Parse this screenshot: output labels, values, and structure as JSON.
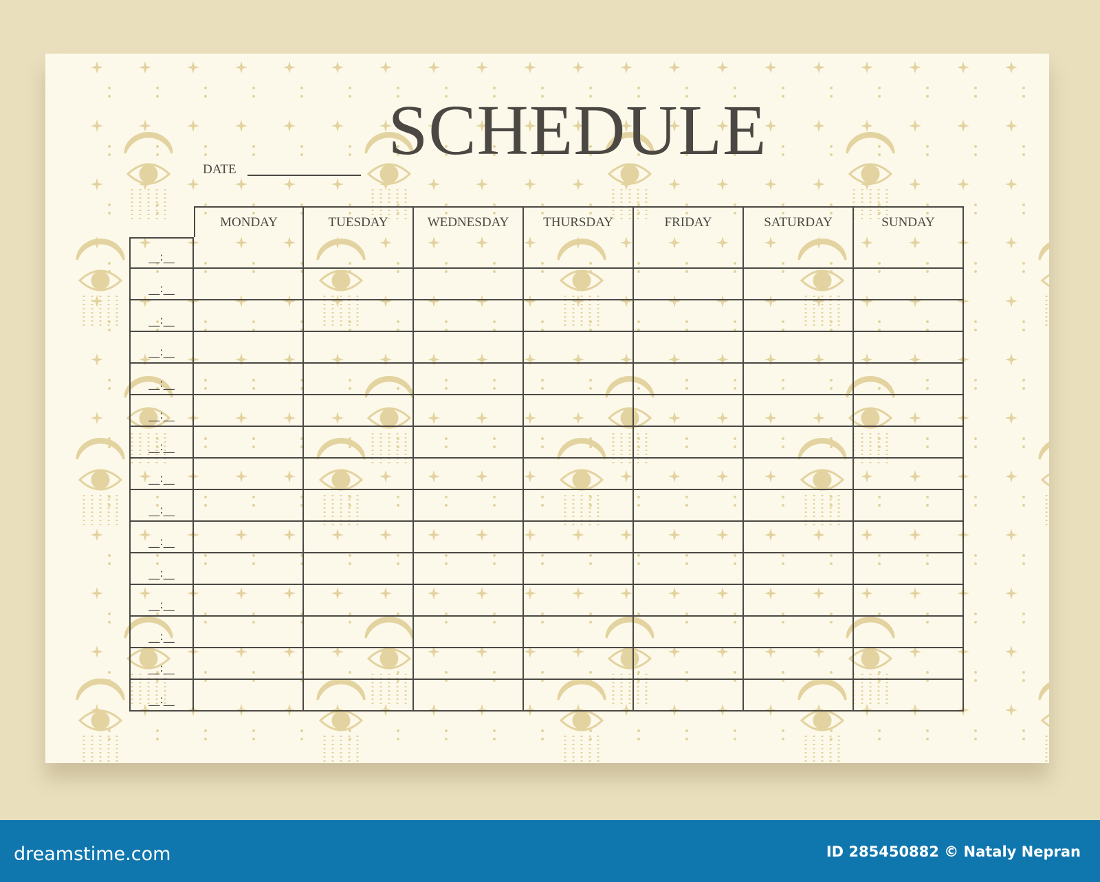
{
  "document": {
    "title": "SCHEDULE",
    "date_label": "DATE",
    "days": [
      "MONDAY",
      "TUESDAY",
      "WEDNESDAY",
      "THURSDAY",
      "FRIDAY",
      "SATURDAY",
      "SUNDAY"
    ],
    "time_slot_placeholder": "__:__",
    "row_count": 15
  },
  "footer": {
    "brand": "dreamstime.com",
    "credit": "ID 285450882 © Nataly Nepran"
  },
  "colors": {
    "background": "#e9dfbd",
    "paper": "#fdf9ea",
    "pattern": "#e3d3a0",
    "ink": "#4b4843",
    "footer": "#0f76ae"
  },
  "icons": [
    "eye-with-crescent-moon-icon",
    "sparkle-star-icon"
  ]
}
